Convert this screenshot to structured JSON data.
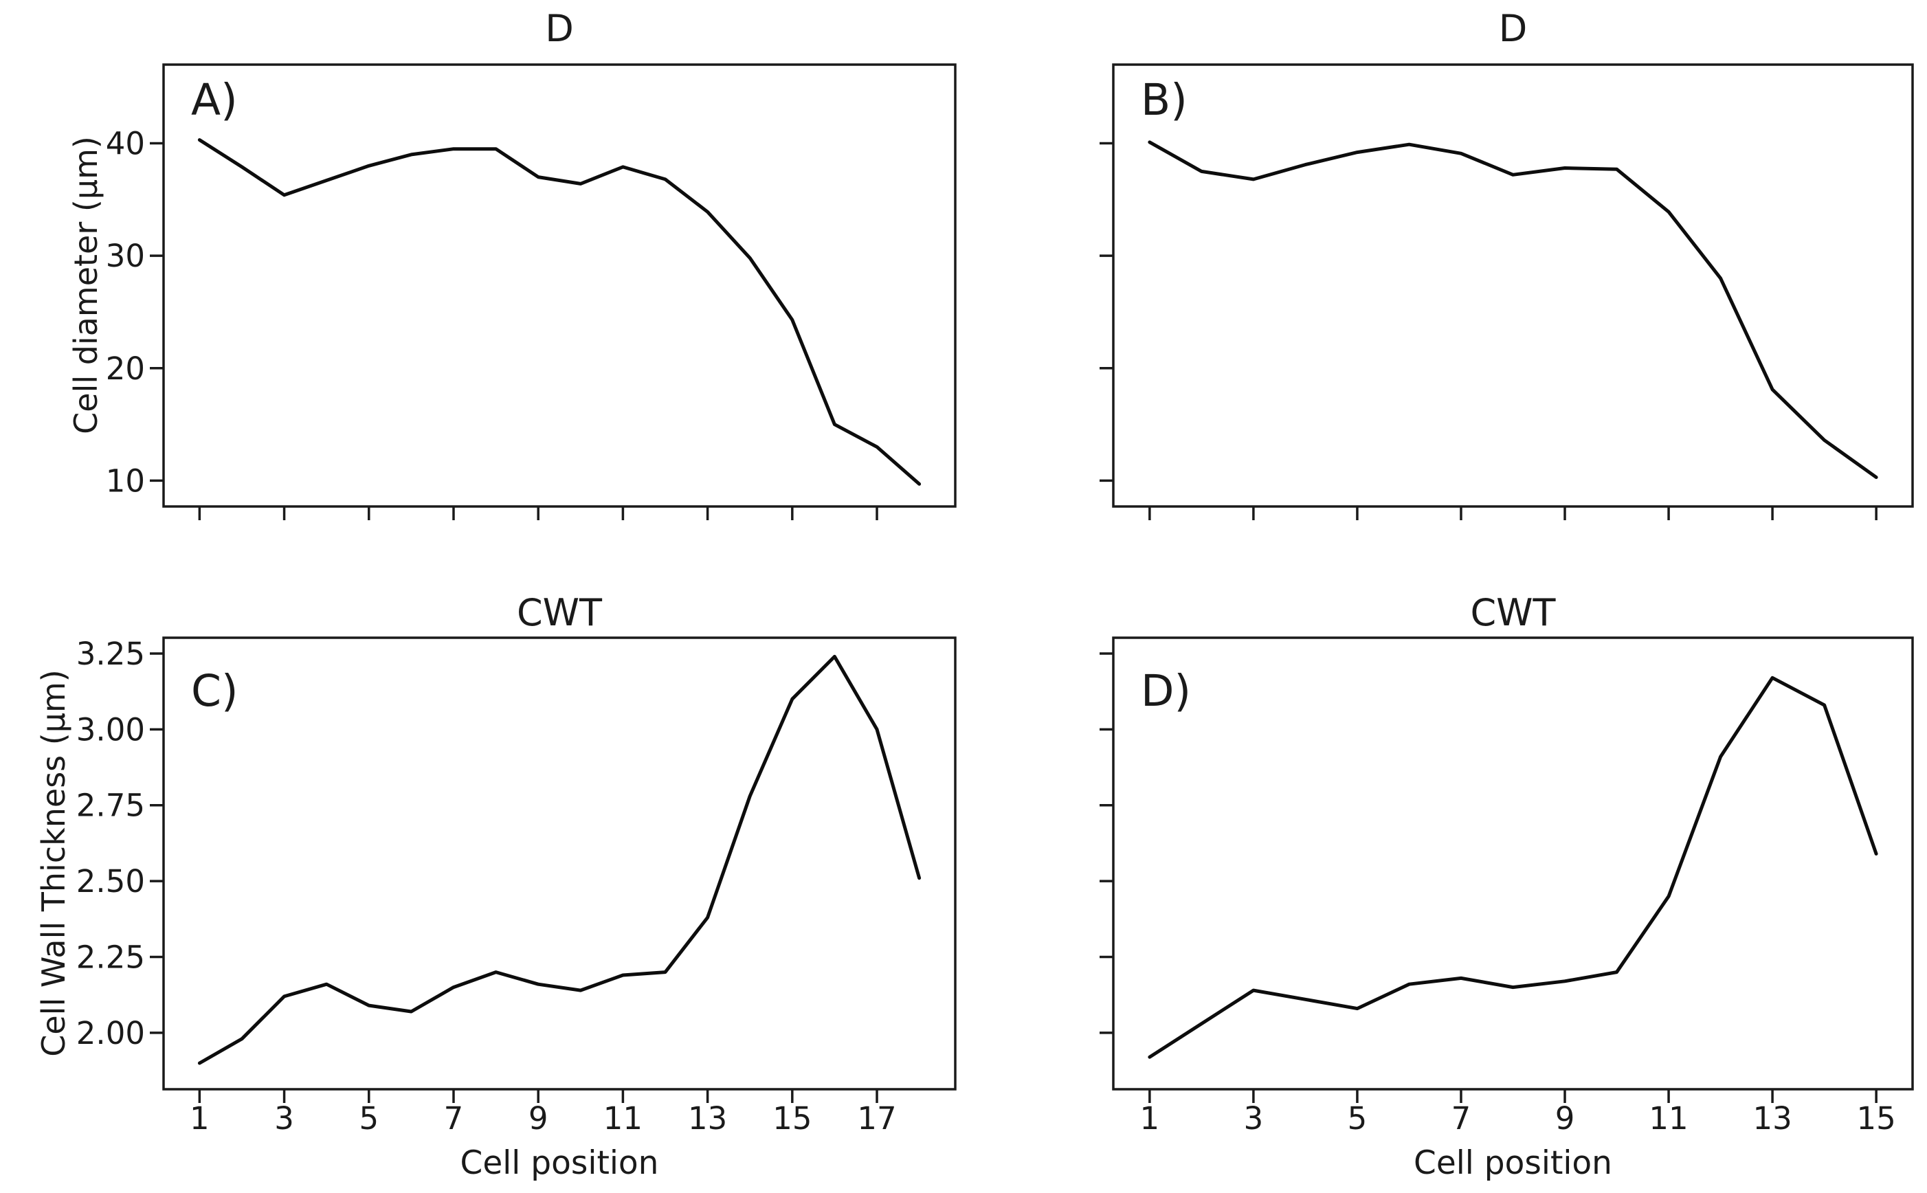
{
  "figure": {
    "background": "#ffffff",
    "line_color": "#0d0d0d",
    "axis_color": "#1a1a1a",
    "text_color": "#1a1a1a"
  },
  "chart_data": [
    {
      "type": "line",
      "panel_letter": "A)",
      "title": "D",
      "xlabel": "",
      "ylabel": "Cell diameter (μm)",
      "x": [
        1,
        2,
        3,
        4,
        5,
        6,
        7,
        8,
        9,
        10,
        11,
        12,
        13,
        14,
        15,
        16,
        17,
        18
      ],
      "y": [
        40.3,
        37.9,
        35.4,
        36.7,
        38.0,
        39.0,
        39.5,
        39.5,
        37.0,
        36.4,
        37.9,
        36.8,
        33.9,
        29.8,
        24.3,
        15.0,
        13.0,
        9.7
      ],
      "xlim": [
        0.15,
        18.85
      ],
      "ylim": [
        7.7,
        47.0
      ],
      "xticks": [
        1,
        3,
        5,
        7,
        9,
        11,
        13,
        15,
        17
      ],
      "xtick_labels": [],
      "yticks": [
        10,
        20,
        30,
        40
      ],
      "ytick_labels": [
        "10",
        "20",
        "30",
        "40"
      ],
      "grid": false,
      "legend": null
    },
    {
      "type": "line",
      "panel_letter": "B)",
      "title": "D",
      "xlabel": "",
      "ylabel": "",
      "x": [
        1,
        2,
        3,
        4,
        5,
        6,
        7,
        8,
        9,
        10,
        11,
        12,
        13,
        14,
        15
      ],
      "y": [
        40.1,
        37.5,
        36.8,
        38.1,
        39.2,
        39.9,
        39.1,
        37.2,
        37.8,
        37.7,
        33.9,
        28.0,
        18.1,
        13.6,
        10.3
      ],
      "xlim": [
        0.3,
        15.7
      ],
      "ylim": [
        7.7,
        47.0
      ],
      "xticks": [
        1,
        3,
        5,
        7,
        9,
        11,
        13,
        15
      ],
      "xtick_labels": [],
      "yticks": [
        10,
        20,
        30,
        40
      ],
      "ytick_labels": [],
      "grid": false,
      "legend": null
    },
    {
      "type": "line",
      "panel_letter": "C)",
      "title": "CWT",
      "xlabel": "Cell position",
      "ylabel": "Cell Wall Thickness (μm)",
      "x": [
        1,
        2,
        3,
        4,
        5,
        6,
        7,
        8,
        9,
        10,
        11,
        12,
        13,
        14,
        15,
        16,
        17,
        18
      ],
      "y": [
        1.9,
        1.98,
        2.12,
        2.16,
        2.09,
        2.07,
        2.15,
        2.2,
        2.16,
        2.14,
        2.19,
        2.2,
        2.38,
        2.78,
        3.1,
        3.24,
        3.0,
        2.51
      ],
      "xlim": [
        0.15,
        18.85
      ],
      "ylim": [
        1.814,
        3.302
      ],
      "xticks": [
        1,
        3,
        5,
        7,
        9,
        11,
        13,
        15,
        17
      ],
      "xtick_labels": [
        "1",
        "3",
        "5",
        "7",
        "9",
        "11",
        "13",
        "15",
        "17"
      ],
      "yticks": [
        2.0,
        2.25,
        2.5,
        2.75,
        3.0,
        3.25
      ],
      "ytick_labels": [
        "2.00",
        "2.25",
        "2.50",
        "2.75",
        "3.00",
        "3.25"
      ],
      "grid": false,
      "legend": null
    },
    {
      "type": "line",
      "panel_letter": "D)",
      "title": "CWT",
      "xlabel": "Cell position",
      "ylabel": "",
      "x": [
        1,
        2,
        3,
        4,
        5,
        6,
        7,
        8,
        9,
        10,
        11,
        12,
        13,
        14,
        15
      ],
      "y": [
        1.92,
        2.03,
        2.14,
        2.11,
        2.08,
        2.16,
        2.18,
        2.15,
        2.17,
        2.2,
        2.45,
        2.91,
        3.17,
        3.08,
        2.59
      ],
      "xlim": [
        0.3,
        15.7
      ],
      "ylim": [
        1.814,
        3.302
      ],
      "xticks": [
        1,
        3,
        5,
        7,
        9,
        11,
        13,
        15
      ],
      "xtick_labels": [
        "1",
        "3",
        "5",
        "7",
        "9",
        "11",
        "13",
        "15"
      ],
      "yticks": [
        2.0,
        2.25,
        2.5,
        2.75,
        3.0,
        3.25
      ],
      "ytick_labels": [],
      "grid": false,
      "legend": null
    }
  ]
}
